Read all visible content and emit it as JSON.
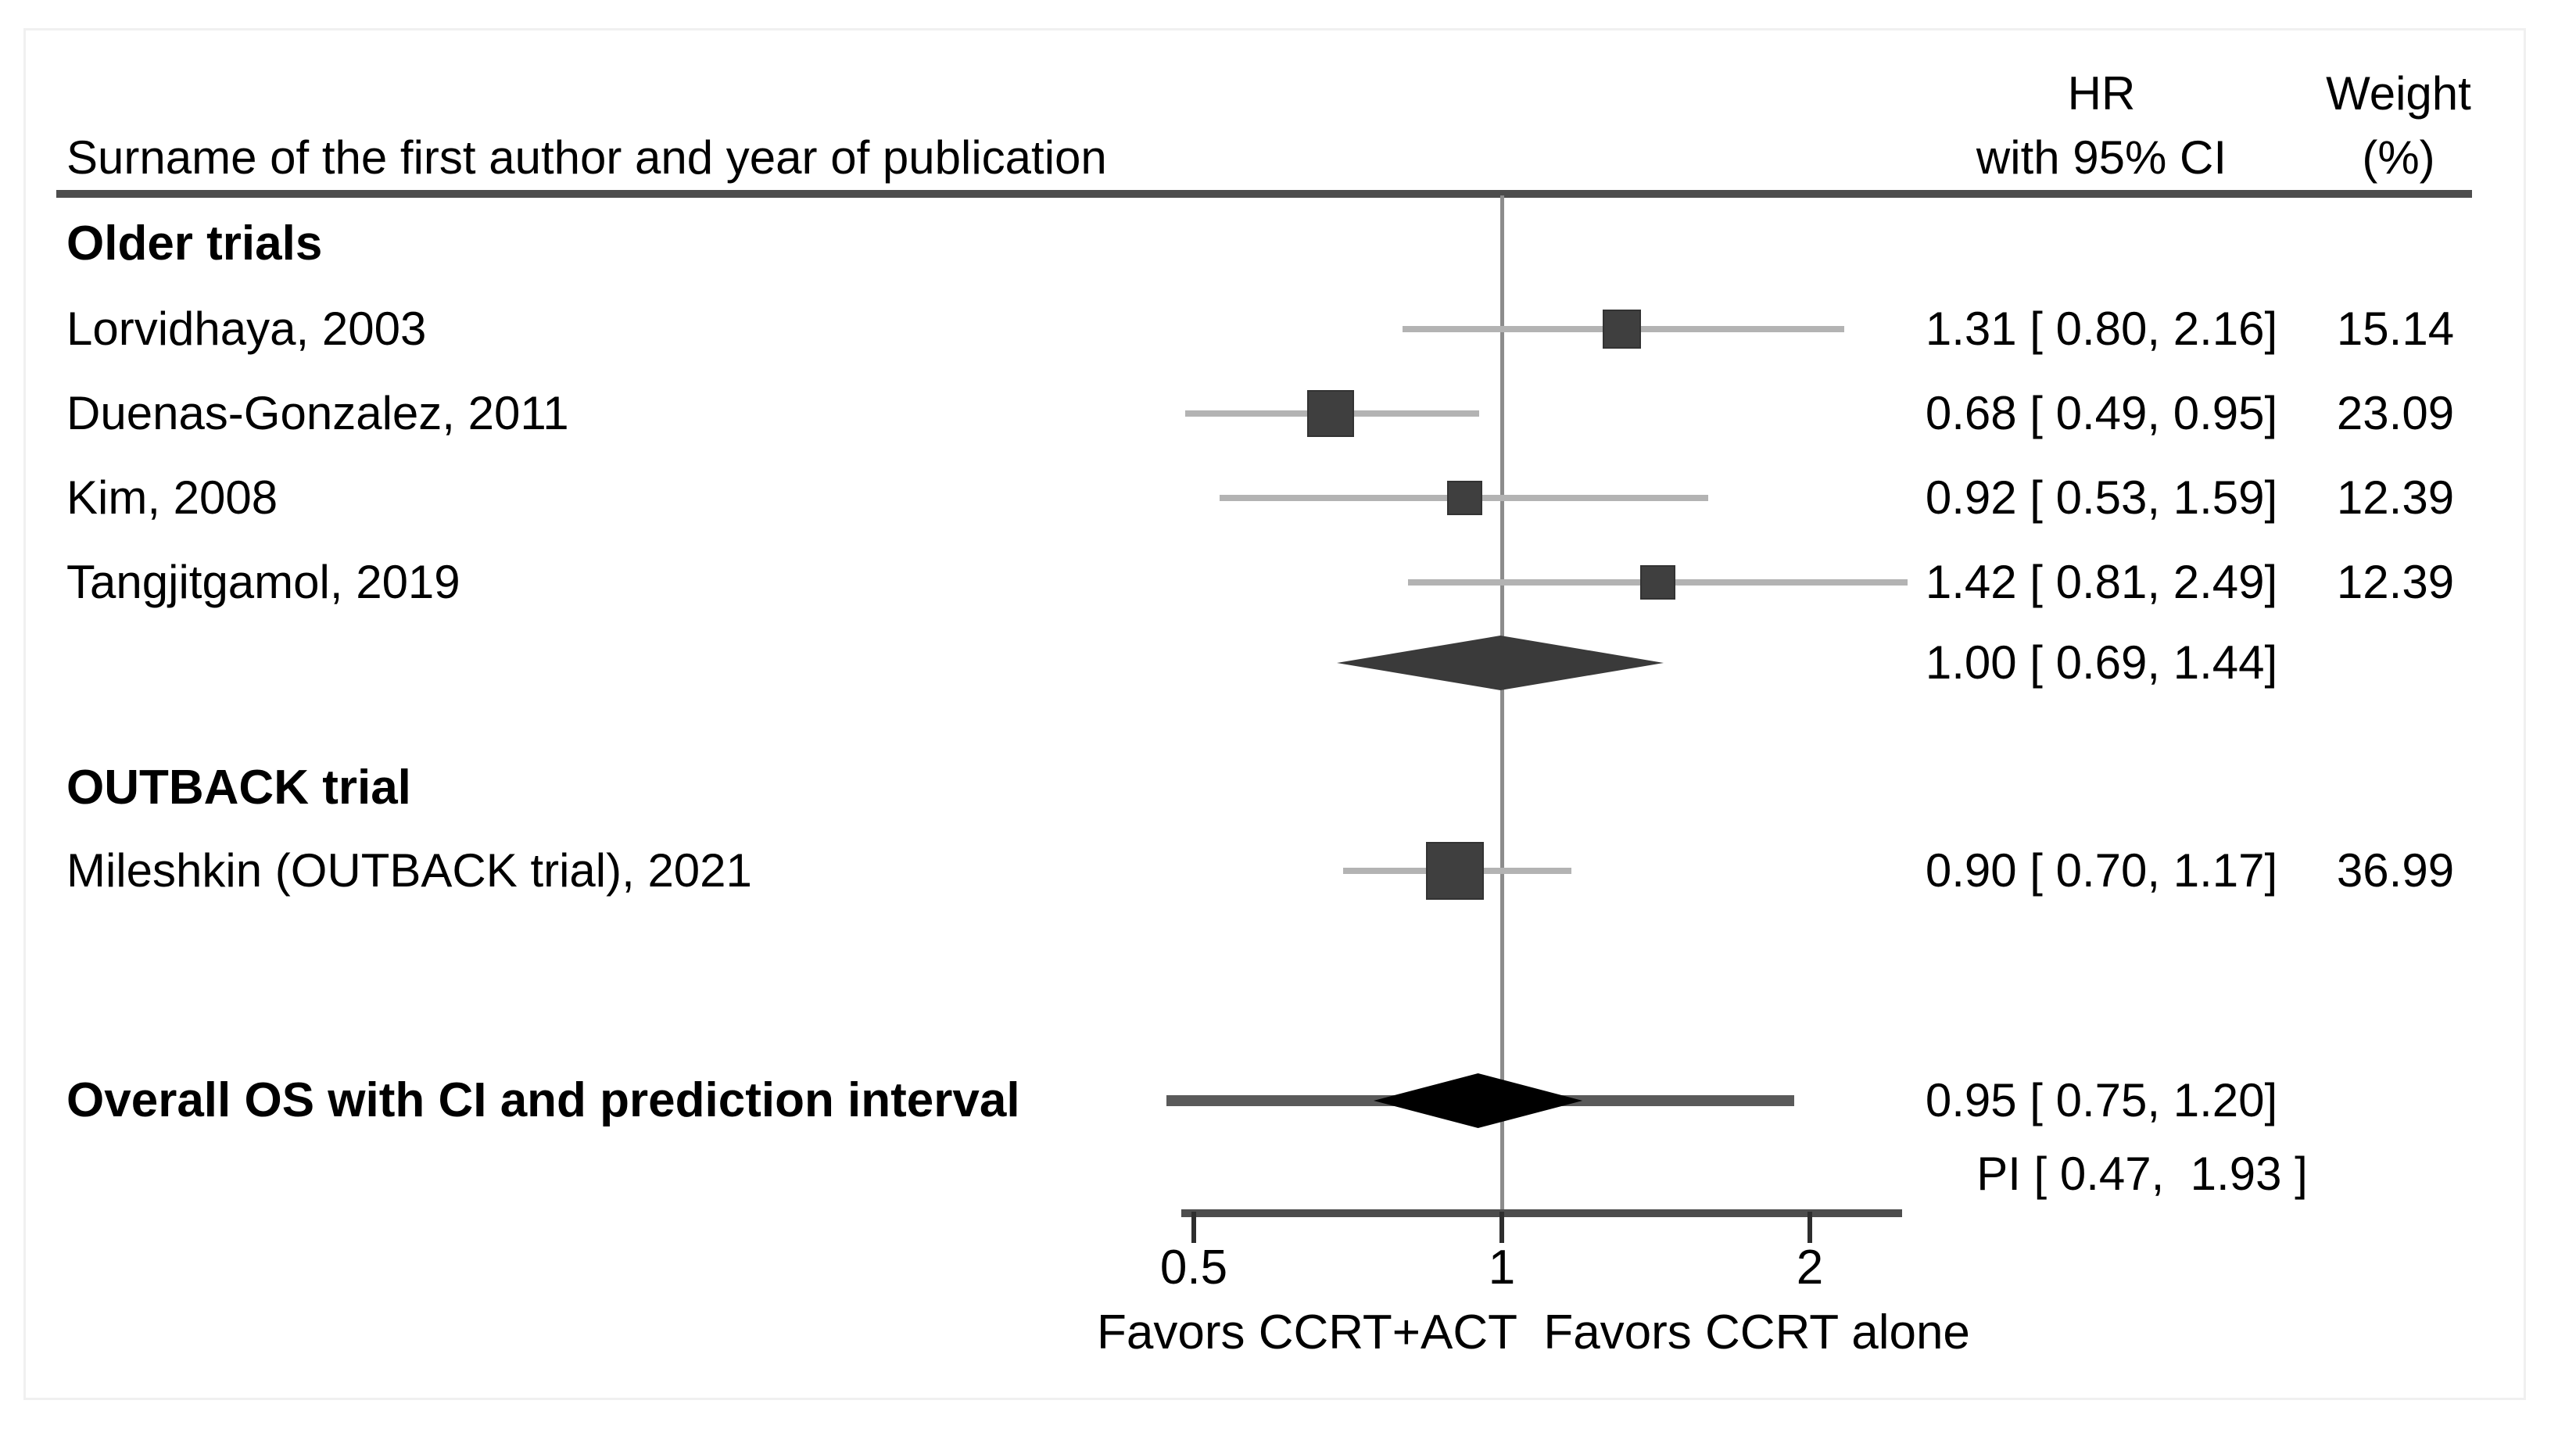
{
  "header": {
    "left_title": "Surname of the first author and year of publication",
    "hr_col": {
      "line1": "HR",
      "line2": "with 95% CI"
    },
    "weight_col": {
      "line1": "Weight",
      "line2": "(%)"
    }
  },
  "chart_data": {
    "type": "forest",
    "x_scale": "log",
    "xlim": [
      0.47,
      2.5
    ],
    "reference_value": 1,
    "x_ticks": [
      {
        "value": 0.5,
        "label": "0.5"
      },
      {
        "value": 1,
        "label": "1"
      },
      {
        "value": 2,
        "label": "2"
      }
    ],
    "x_axis_label_left": "Favors CCRT+ACT",
    "x_axis_label_right": "Favors CCRT alone",
    "colors": {
      "marker": "#3f3f3f",
      "ci_line": "#b3b3b3",
      "subgroup_diamond": "#3a3a3a",
      "overall_diamond": "#000000",
      "prediction_interval_line": "#5a5a5a"
    },
    "rows": [
      {
        "kind": "section",
        "label": "Older trials"
      },
      {
        "kind": "study",
        "label": "Lorvidhaya, 2003",
        "hr": 1.31,
        "ci_low": 0.8,
        "ci_high": 2.16,
        "weight": 15.14,
        "hr_ci_text": "1.31 [ 0.80, 2.16]",
        "weight_text": "15.14"
      },
      {
        "kind": "study",
        "label": "Duenas-Gonzalez, 2011",
        "hr": 0.68,
        "ci_low": 0.49,
        "ci_high": 0.95,
        "weight": 23.09,
        "hr_ci_text": "0.68 [ 0.49, 0.95]",
        "weight_text": "23.09"
      },
      {
        "kind": "study",
        "label": "Kim, 2008",
        "hr": 0.92,
        "ci_low": 0.53,
        "ci_high": 1.59,
        "weight": 12.39,
        "hr_ci_text": "0.92 [ 0.53, 1.59]",
        "weight_text": "12.39"
      },
      {
        "kind": "study",
        "label": "Tangjitgamol, 2019",
        "hr": 1.42,
        "ci_low": 0.81,
        "ci_high": 2.49,
        "weight": 12.39,
        "hr_ci_text": "1.42 [ 0.81, 2.49]",
        "weight_text": "12.39"
      },
      {
        "kind": "summary",
        "variant": "subgroup",
        "label": "",
        "hr": 1.0,
        "ci_low": 0.69,
        "ci_high": 1.44,
        "hr_ci_text": "1.00 [ 0.69, 1.44]"
      },
      {
        "kind": "section",
        "label": "OUTBACK trial"
      },
      {
        "kind": "study",
        "label": "Mileshkin (OUTBACK trial), 2021",
        "hr": 0.9,
        "ci_low": 0.7,
        "ci_high": 1.17,
        "weight": 36.99,
        "hr_ci_text": "0.90 [ 0.70, 1.17]",
        "weight_text": "36.99"
      },
      {
        "kind": "summary",
        "variant": "overall",
        "label": "Overall OS with CI and prediction interval",
        "hr": 0.95,
        "ci_low": 0.75,
        "ci_high": 1.2,
        "pi_low": 0.47,
        "pi_high": 1.93,
        "hr_ci_text": "0.95 [ 0.75, 1.20]"
      },
      {
        "kind": "pi_note",
        "pi_text": "PI [ 0.47,  1.93 ]"
      }
    ]
  }
}
